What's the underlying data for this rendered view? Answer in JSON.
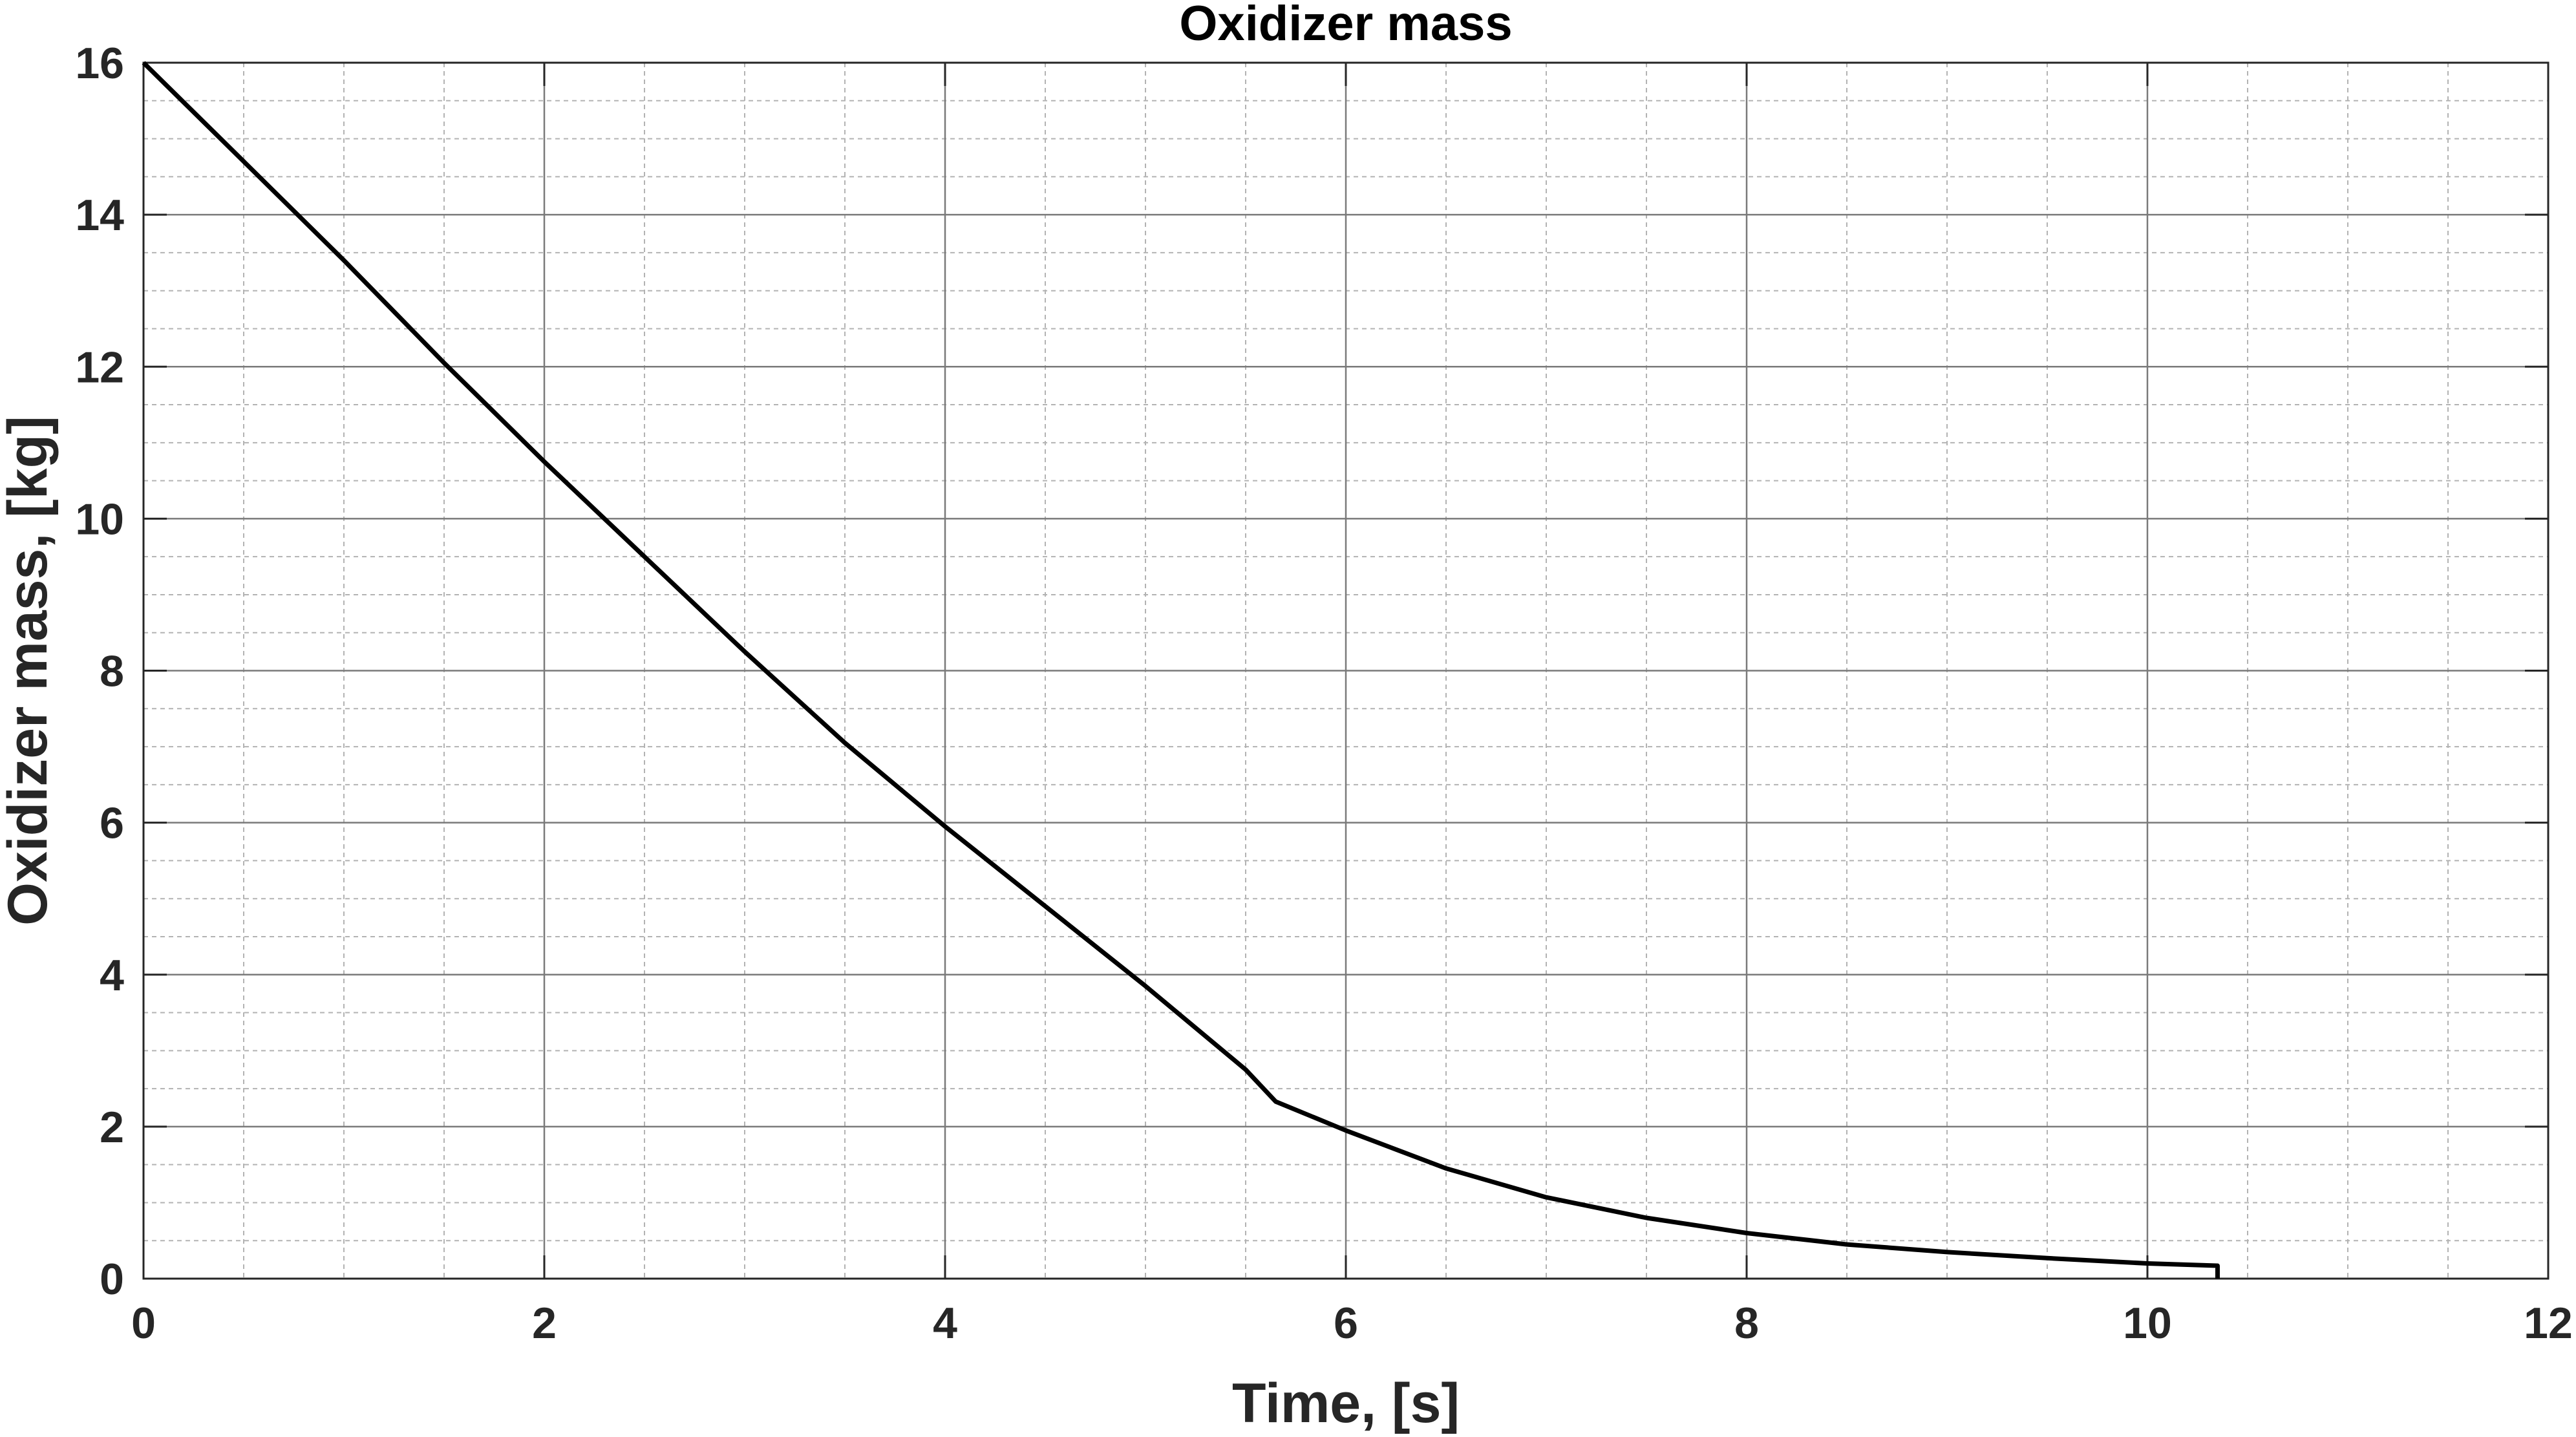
{
  "chart_data": {
    "type": "line",
    "title": "Oxidizer mass",
    "xlabel": "Time, [s]",
    "ylabel": "Oxidizer mass, [kg]",
    "xlim": [
      0,
      12
    ],
    "ylim": [
      0,
      16
    ],
    "xticks": [
      "0",
      "2",
      "4",
      "6",
      "8",
      "10",
      "12"
    ],
    "yticks": [
      "0",
      "2",
      "4",
      "6",
      "8",
      "10",
      "12",
      "14",
      "16"
    ],
    "grid": "major and minor",
    "line_color": "#000000",
    "series": [
      {
        "x": [
          0,
          0.5,
          1,
          1.5,
          2,
          2.5,
          3,
          3.5,
          4,
          4.5,
          5,
          5.5,
          5.65,
          6,
          6.5,
          7,
          7.5,
          8,
          8.5,
          9,
          9.5,
          10,
          10.35,
          10.35
        ],
        "y": [
          16,
          14.7,
          13.4,
          12.05,
          10.75,
          9.5,
          8.25,
          7.05,
          5.95,
          4.9,
          3.85,
          2.75,
          2.33,
          1.95,
          1.45,
          1.07,
          0.8,
          0.6,
          0.45,
          0.35,
          0.27,
          0.2,
          0.17,
          0
        ]
      }
    ]
  }
}
